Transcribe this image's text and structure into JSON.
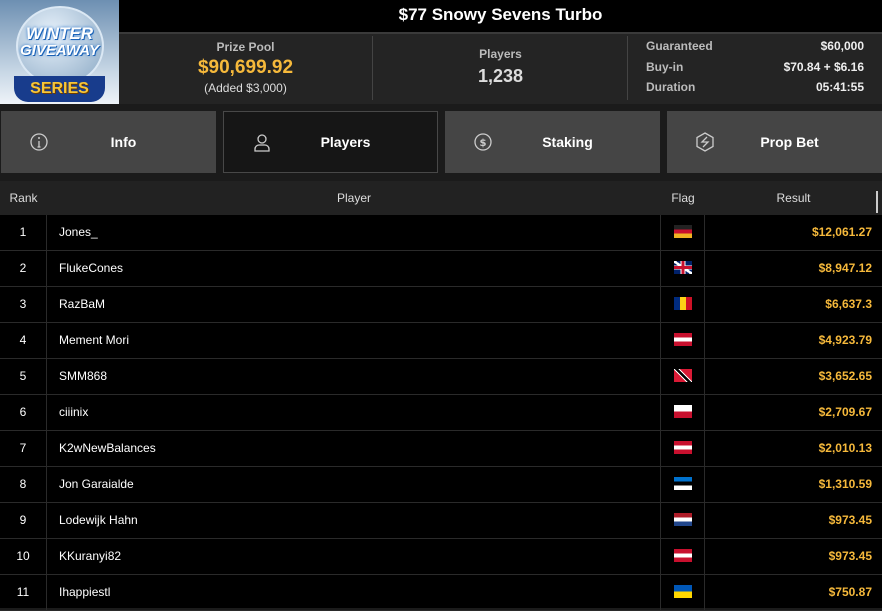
{
  "title": "$77 Snowy Sevens Turbo",
  "logo": {
    "line1": "WINTER",
    "line2": "GIVEAWAY",
    "line3": "SERIES"
  },
  "prize_pool": {
    "label": "Prize Pool",
    "value": "$90,699.92",
    "added": "(Added $3,000)"
  },
  "players_stat": {
    "label": "Players",
    "value": "1,238"
  },
  "info": [
    {
      "k": "Guaranteed",
      "v": "$60,000"
    },
    {
      "k": "Buy-in",
      "v": "$70.84 + $6.16"
    },
    {
      "k": "Duration",
      "v": "05:41:55"
    }
  ],
  "tabs": [
    {
      "label": "Info",
      "icon": "info-icon"
    },
    {
      "label": "Players",
      "icon": "user-icon",
      "active": true
    },
    {
      "label": "Staking",
      "icon": "dollar-coin-icon"
    },
    {
      "label": "Prop Bet",
      "icon": "lightning-hexagon-icon"
    }
  ],
  "table": {
    "headers": {
      "rank": "Rank",
      "player": "Player",
      "flag": "Flag",
      "result": "Result"
    },
    "rows": [
      {
        "rank": "1",
        "player": "Jones_",
        "flag": "DE",
        "result": "$12,061.27"
      },
      {
        "rank": "2",
        "player": "FlukeCones",
        "flag": "GB",
        "result": "$8,947.12"
      },
      {
        "rank": "3",
        "player": "RazBaM",
        "flag": "RO",
        "result": "$6,637.3"
      },
      {
        "rank": "4",
        "player": "Mement Mori",
        "flag": "AT",
        "result": "$4,923.79"
      },
      {
        "rank": "5",
        "player": "SMM868",
        "flag": "TT",
        "result": "$3,652.65"
      },
      {
        "rank": "6",
        "player": "ciiinix",
        "flag": "PL",
        "result": "$2,709.67"
      },
      {
        "rank": "7",
        "player": "K2wNewBalances",
        "flag": "AT",
        "result": "$2,010.13"
      },
      {
        "rank": "8",
        "player": "Jon Garaialde",
        "flag": "EE",
        "result": "$1,310.59"
      },
      {
        "rank": "9",
        "player": "Lodewijk Hahn",
        "flag": "NL",
        "result": "$973.45"
      },
      {
        "rank": "10",
        "player": "KKuranyi82",
        "flag": "AT",
        "result": "$973.45"
      },
      {
        "rank": "11",
        "player": "Ihappiestl",
        "flag": "UA",
        "result": "$750.87"
      }
    ]
  },
  "colors": {
    "accent": "#f6b93b",
    "active_tab": "#161616",
    "tab": "#454545"
  }
}
